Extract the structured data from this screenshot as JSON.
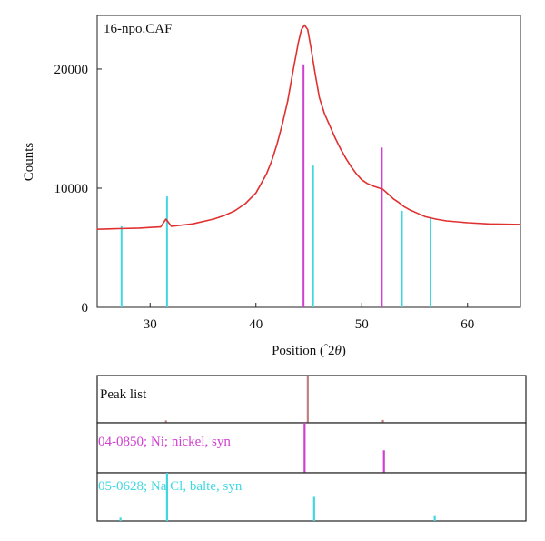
{
  "chart_data": [
    {
      "type": "line",
      "title": "16-npo.CAF",
      "xlabel": "Position (°2θ)",
      "xlabel_prefix": "Position (",
      "xlabel_deg": "°",
      "xlabel_2": "2",
      "xlabel_theta": "θ",
      "xlabel_suffix": ")",
      "ylabel": "Counts",
      "xlim": [
        25,
        65
      ],
      "ylim": [
        0,
        24500
      ],
      "xticks": [
        30,
        40,
        50,
        60
      ],
      "yticks": [
        0,
        10000,
        20000
      ],
      "grid": false,
      "series": [
        {
          "color": "#e03030",
          "x": [
            25,
            27,
            29,
            30,
            31,
            31.5,
            32,
            34,
            36,
            37,
            38,
            39,
            40,
            41,
            41.5,
            42,
            42.5,
            43,
            43.5,
            44,
            44.3,
            44.6,
            44.9,
            45.2,
            45.6,
            46,
            46.5,
            47,
            47.5,
            48,
            48.5,
            49,
            49.5,
            50,
            50.5,
            51,
            51.5,
            52,
            52.5,
            53,
            53.5,
            54,
            54.5,
            55,
            55.5,
            56,
            57,
            58,
            60,
            62,
            65
          ],
          "y": [
            6550,
            6600,
            6650,
            6700,
            6750,
            7400,
            6800,
            7000,
            7400,
            7700,
            8100,
            8700,
            9600,
            11200,
            12300,
            13700,
            15400,
            17300,
            19800,
            22200,
            23300,
            23700,
            23300,
            21800,
            19600,
            17600,
            16200,
            15200,
            14200,
            13300,
            12500,
            11800,
            11200,
            10700,
            10400,
            10200,
            10050,
            9900,
            9500,
            9100,
            8800,
            8450,
            8200,
            8000,
            7800,
            7600,
            7400,
            7250,
            7100,
            7000,
            6950
          ]
        }
      ],
      "reference_lines": [
        {
          "phase": "04-0850; Ni; nickel, syn",
          "color": "#d040d0",
          "x": [
            44.5,
            51.9
          ],
          "top": [
            20400,
            13400
          ]
        },
        {
          "phase": "05-0628; Na Cl, balte, syn",
          "color": "#40d8e0",
          "x": [
            27.3,
            31.6,
            45.4,
            53.8,
            56.5
          ],
          "top": [
            6800,
            9300,
            11900,
            8100,
            7500
          ]
        }
      ]
    },
    {
      "type": "bar",
      "panel": "Peak list",
      "color": "#c08080",
      "x": [
        31.5,
        44.9,
        52.0
      ],
      "rel_height": [
        0.05,
        1.0,
        0.06
      ]
    },
    {
      "type": "bar",
      "panel": "04-0850; Ni; nickel, syn",
      "color": "#d040d0",
      "x": [
        44.6,
        52.1
      ],
      "rel_height": [
        1.0,
        0.45
      ]
    },
    {
      "type": "bar",
      "panel": "05-0628; Na Cl, balte, syn",
      "color": "#40d8e0",
      "x": [
        27.2,
        31.6,
        45.5,
        56.9
      ],
      "rel_height": [
        0.07,
        1.0,
        0.5,
        0.12
      ]
    }
  ]
}
